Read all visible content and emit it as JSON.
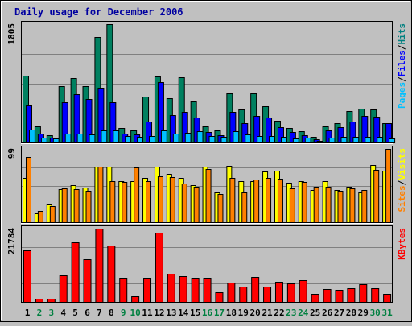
{
  "chart_data": {
    "type": "bar",
    "title": "Daily usage for December 2006",
    "categories": [
      "1",
      "2",
      "3",
      "4",
      "5",
      "6",
      "7",
      "8",
      "9",
      "10",
      "11",
      "12",
      "13",
      "14",
      "15",
      "16",
      "17",
      "18",
      "19",
      "20",
      "21",
      "22",
      "23",
      "24",
      "25",
      "26",
      "27",
      "28",
      "29",
      "30",
      "31"
    ],
    "weekend_days": [
      "2",
      "3",
      "9",
      "10",
      "16",
      "17",
      "23",
      "24",
      "30",
      "31"
    ],
    "panels": [
      {
        "id": "top",
        "max_label": "1805",
        "ylim": [
          0,
          1805
        ],
        "side_labels": [
          {
            "text": "Pages",
            "color": "#00c0ff"
          },
          {
            "text": "/",
            "color": "#000000"
          },
          {
            "text": "Files",
            "color": "#0000ff"
          },
          {
            "text": "/",
            "color": "#000000"
          },
          {
            "text": "Hits",
            "color": "#008080"
          }
        ],
        "series": [
          {
            "name": "Hits",
            "color": "#008060",
            "values": [
              1020,
              240,
              110,
              860,
              980,
              860,
              1610,
              1805,
              220,
              180,
              700,
              1010,
              680,
              1000,
              630,
              240,
              180,
              750,
              500,
              750,
              550,
              330,
              220,
              170,
              90,
              250,
              300,
              480,
              510,
              500,
              290
            ]
          },
          {
            "name": "Files",
            "color": "#0000ff",
            "values": [
              560,
              140,
              70,
              620,
              740,
              660,
              840,
              620,
              140,
              120,
              320,
              920,
              420,
              470,
              380,
              160,
              110,
              470,
              290,
              410,
              380,
              230,
              160,
              110,
              50,
              180,
              230,
              320,
              400,
              390,
              290
            ]
          },
          {
            "name": "Pages",
            "color": "#00c0ff",
            "values": [
              200,
              70,
              60,
              130,
              130,
              120,
              180,
              180,
              100,
              80,
              100,
              190,
              130,
              150,
              170,
              100,
              80,
              170,
              120,
              100,
              100,
              80,
              60,
              70,
              30,
              70,
              80,
              80,
              80,
              80,
              60
            ]
          }
        ]
      },
      {
        "id": "mid",
        "max_label": "99",
        "ylim": [
          0,
          99
        ],
        "side_labels": [
          {
            "text": "Sites",
            "color": "#ff8000"
          },
          {
            "text": "/",
            "color": "#000000"
          },
          {
            "text": "Visits",
            "color": "#ffff00"
          }
        ],
        "series": [
          {
            "name": "Visits",
            "color": "#ffff00",
            "values": [
              60,
              12,
              24,
              45,
              50,
              47,
              75,
              75,
              55,
              55,
              60,
              75,
              65,
              60,
              50,
              75,
              40,
              76,
              56,
              56,
              68,
              70,
              53,
              55,
              44,
              55,
              43,
              48,
              40,
              77,
              70
            ]
          },
          {
            "name": "Sites",
            "color": "#ff8000",
            "values": [
              88,
              15,
              22,
              46,
              45,
              42,
              75,
              55,
              54,
              74,
              56,
              62,
              61,
              52,
              48,
              72,
              38,
              60,
              40,
              58,
              60,
              59,
              46,
              54,
              48,
              48,
              42,
              46,
              43,
              71,
              99
            ]
          }
        ]
      },
      {
        "id": "bottom",
        "max_label": "21784",
        "ylim": [
          0,
          21784
        ],
        "side_labels": [
          {
            "text": "KBytes",
            "color": "#ff0000"
          }
        ],
        "series": [
          {
            "name": "KBytes",
            "color": "#ff0000",
            "values": [
              15300,
              1010,
              1010,
              8000,
              17800,
              12600,
              21784,
              16700,
              7300,
              1780,
              7300,
              20500,
              8300,
              7600,
              7300,
              7300,
              2780,
              5700,
              4500,
              7500,
              4500,
              6000,
              5500,
              6500,
              2400,
              3800,
              3700,
              4100,
              5200,
              4000,
              2400
            ]
          }
        ]
      }
    ]
  }
}
